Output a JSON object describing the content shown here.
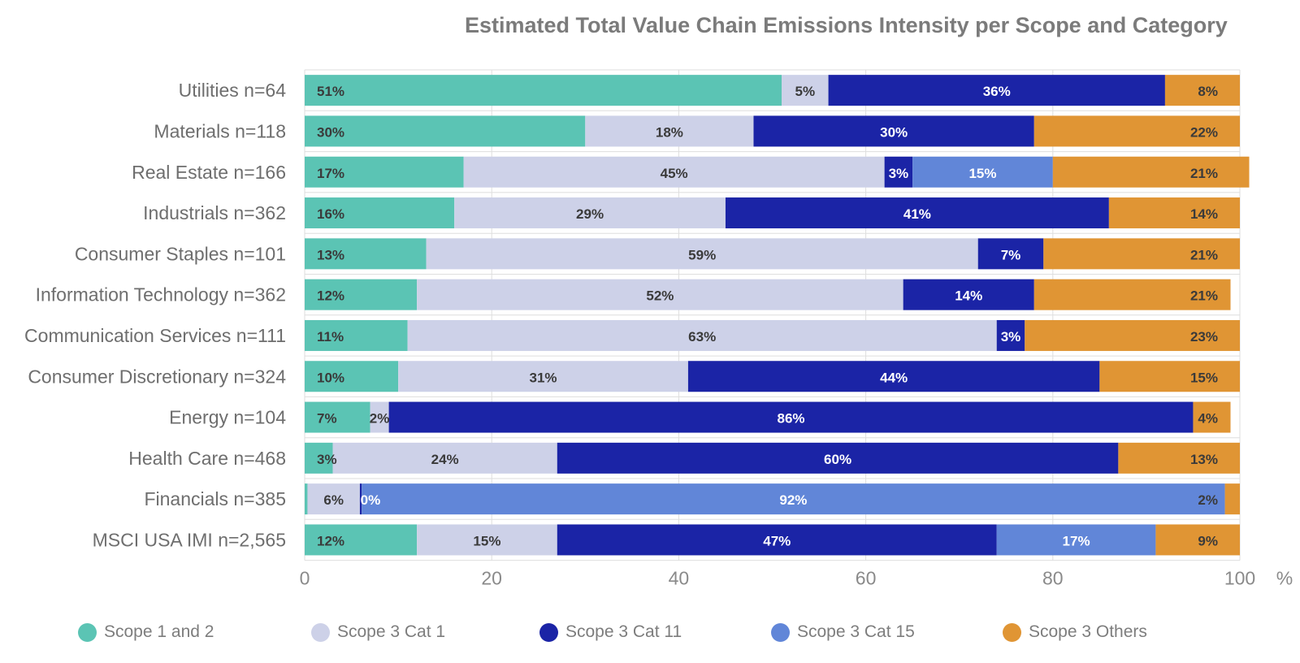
{
  "chart_data": {
    "type": "bar",
    "orientation": "horizontal",
    "stacked": true,
    "title": "Estimated Total Value Chain Emissions Intensity per Scope and Category",
    "xlabel": "%",
    "ylabel": "",
    "xlim": [
      0,
      100
    ],
    "x_ticks": [
      "0",
      "20",
      "40",
      "60",
      "80",
      "100"
    ],
    "x_tick_values": [
      0,
      20,
      40,
      60,
      80,
      100
    ],
    "grid": true,
    "legend_position": "bottom",
    "categories": [
      "Utilities n=64",
      "Materials n=118",
      "Real Estate n=166",
      "Industrials n=362",
      "Consumer Staples n=101",
      "Information Technology n=362",
      "Communication Services n=111",
      "Consumer Discretionary n=324",
      "Energy n=104",
      "Health Care n=468",
      "Financials n=385",
      "MSCI USA IMI n=2,565"
    ],
    "series": [
      {
        "name": "Scope 1 and 2",
        "color": "#5bc4b4",
        "label_color": "#3a3a3a",
        "values": [
          51,
          30,
          17,
          16,
          13,
          12,
          11,
          10,
          7,
          3,
          0.3,
          12
        ],
        "labels": [
          "51%",
          "30%",
          "17%",
          "16%",
          "13%",
          "12%",
          "11%",
          "10%",
          "7%",
          "3%",
          "",
          "12%"
        ]
      },
      {
        "name": "Scope 3 Cat 1",
        "color": "#cdd1e8",
        "label_color": "#3a3a3a",
        "values": [
          5,
          18,
          45,
          29,
          59,
          52,
          63,
          31,
          2,
          24,
          5.6,
          15
        ],
        "labels": [
          "5%",
          "18%",
          "45%",
          "29%",
          "59%",
          "52%",
          "63%",
          "31%",
          "2%",
          "24%",
          "6%",
          "15%"
        ]
      },
      {
        "name": "Scope 3 Cat 11",
        "color": "#1b24a6",
        "label_color": "#ffffff",
        "values": [
          36,
          30,
          3,
          41,
          7,
          14,
          3,
          44,
          86,
          60,
          0.2,
          47
        ],
        "labels": [
          "36%",
          "30%",
          "3%",
          "41%",
          "7%",
          "14%",
          "3%",
          "44%",
          "86%",
          "60%",
          "0%",
          "47%"
        ]
      },
      {
        "name": "Scope 3 Cat 15",
        "color": "#6186d8",
        "label_color": "#ffffff",
        "values": [
          0,
          0,
          15,
          0,
          0,
          0,
          0,
          0,
          0,
          0,
          92.3,
          17
        ],
        "labels": [
          "",
          "",
          "15%",
          "",
          "",
          "",
          "",
          "",
          "",
          "",
          "92%",
          "17%"
        ]
      },
      {
        "name": "Scope 3 Others",
        "color": "#e09534",
        "label_color": "#3a3a3a",
        "values": [
          8,
          22,
          21,
          14,
          21,
          21,
          23,
          15,
          4,
          13,
          1.6,
          9
        ],
        "labels": [
          "8%",
          "22%",
          "21%",
          "14%",
          "21%",
          "21%",
          "23%",
          "15%",
          "4%",
          "13%",
          "2%",
          "9%"
        ]
      }
    ]
  }
}
